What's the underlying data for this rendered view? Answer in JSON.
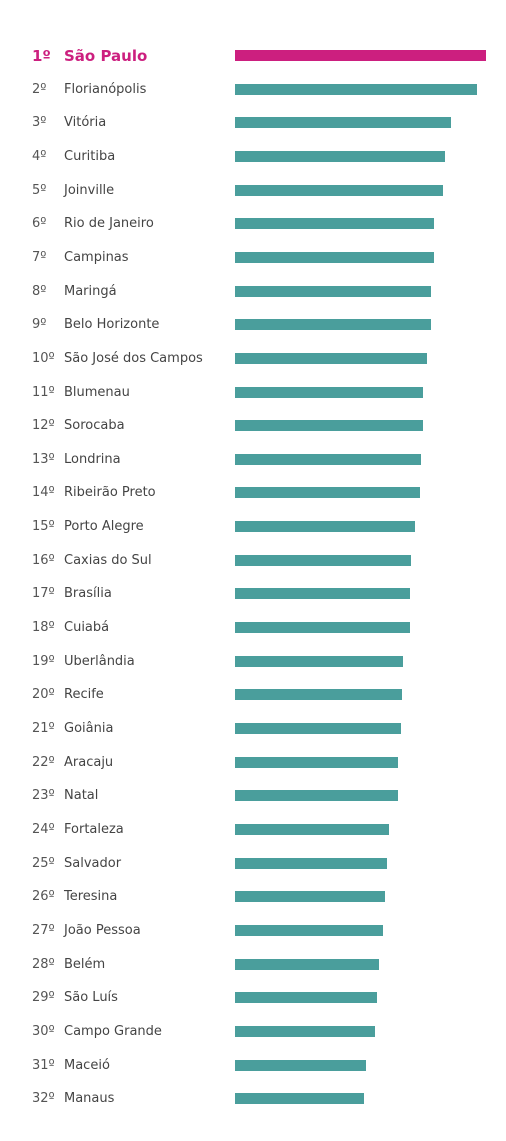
{
  "chart_data": {
    "type": "bar",
    "orientation": "horizontal",
    "colors": {
      "highlight": "#cc1f7f",
      "default": "#4a9e9c"
    },
    "items": [
      {
        "rank": "1º",
        "city": "São Paulo",
        "value": 100.0
      },
      {
        "rank": "2º",
        "city": "Florianópolis",
        "value": 96.4
      },
      {
        "rank": "3º",
        "city": "Vitória",
        "value": 86.1
      },
      {
        "rank": "4º",
        "city": "Curitiba",
        "value": 83.7
      },
      {
        "rank": "5º",
        "city": "Joinville",
        "value": 82.9
      },
      {
        "rank": "6º",
        "city": "Rio de Janeiro",
        "value": 79.3
      },
      {
        "rank": "7º",
        "city": "Campinas",
        "value": 79.3
      },
      {
        "rank": "8º",
        "city": "Maringá",
        "value": 78.1
      },
      {
        "rank": "9º",
        "city": "Belo Horizonte",
        "value": 78.1
      },
      {
        "rank": "10º",
        "city": "São José dos Campos",
        "value": 76.5
      },
      {
        "rank": "11º",
        "city": "Blumenau",
        "value": 74.9
      },
      {
        "rank": "12º",
        "city": "Sorocaba",
        "value": 74.9
      },
      {
        "rank": "13º",
        "city": "Londrina",
        "value": 74.1
      },
      {
        "rank": "14º",
        "city": "Ribeirão Preto",
        "value": 73.7
      },
      {
        "rank": "15º",
        "city": "Porto Alegre",
        "value": 71.7
      },
      {
        "rank": "16º",
        "city": "Caxias do Sul",
        "value": 70.1
      },
      {
        "rank": "17º",
        "city": "Brasília",
        "value": 69.7
      },
      {
        "rank": "18º",
        "city": "Cuiabá",
        "value": 69.7
      },
      {
        "rank": "19º",
        "city": "Uberlândia",
        "value": 66.9
      },
      {
        "rank": "20º",
        "city": "Recife",
        "value": 66.5
      },
      {
        "rank": "21º",
        "city": "Goiânia",
        "value": 66.1
      },
      {
        "rank": "22º",
        "city": "Aracaju",
        "value": 64.9
      },
      {
        "rank": "23º",
        "city": "Natal",
        "value": 64.9
      },
      {
        "rank": "24º",
        "city": "Fortaleza",
        "value": 61.4
      },
      {
        "rank": "25º",
        "city": "Salvador",
        "value": 60.6
      },
      {
        "rank": "26º",
        "city": "Teresina",
        "value": 59.8
      },
      {
        "rank": "27º",
        "city": "João Pessoa",
        "value": 59.0
      },
      {
        "rank": "28º",
        "city": "Belém",
        "value": 57.4
      },
      {
        "rank": "29º",
        "city": "São Luís",
        "value": 56.6
      },
      {
        "rank": "30º",
        "city": "Campo Grande",
        "value": 55.8
      },
      {
        "rank": "31º",
        "city": "Maceió",
        "value": 52.2
      },
      {
        "rank": "32º",
        "city": "Manaus",
        "value": 51.4
      }
    ]
  }
}
